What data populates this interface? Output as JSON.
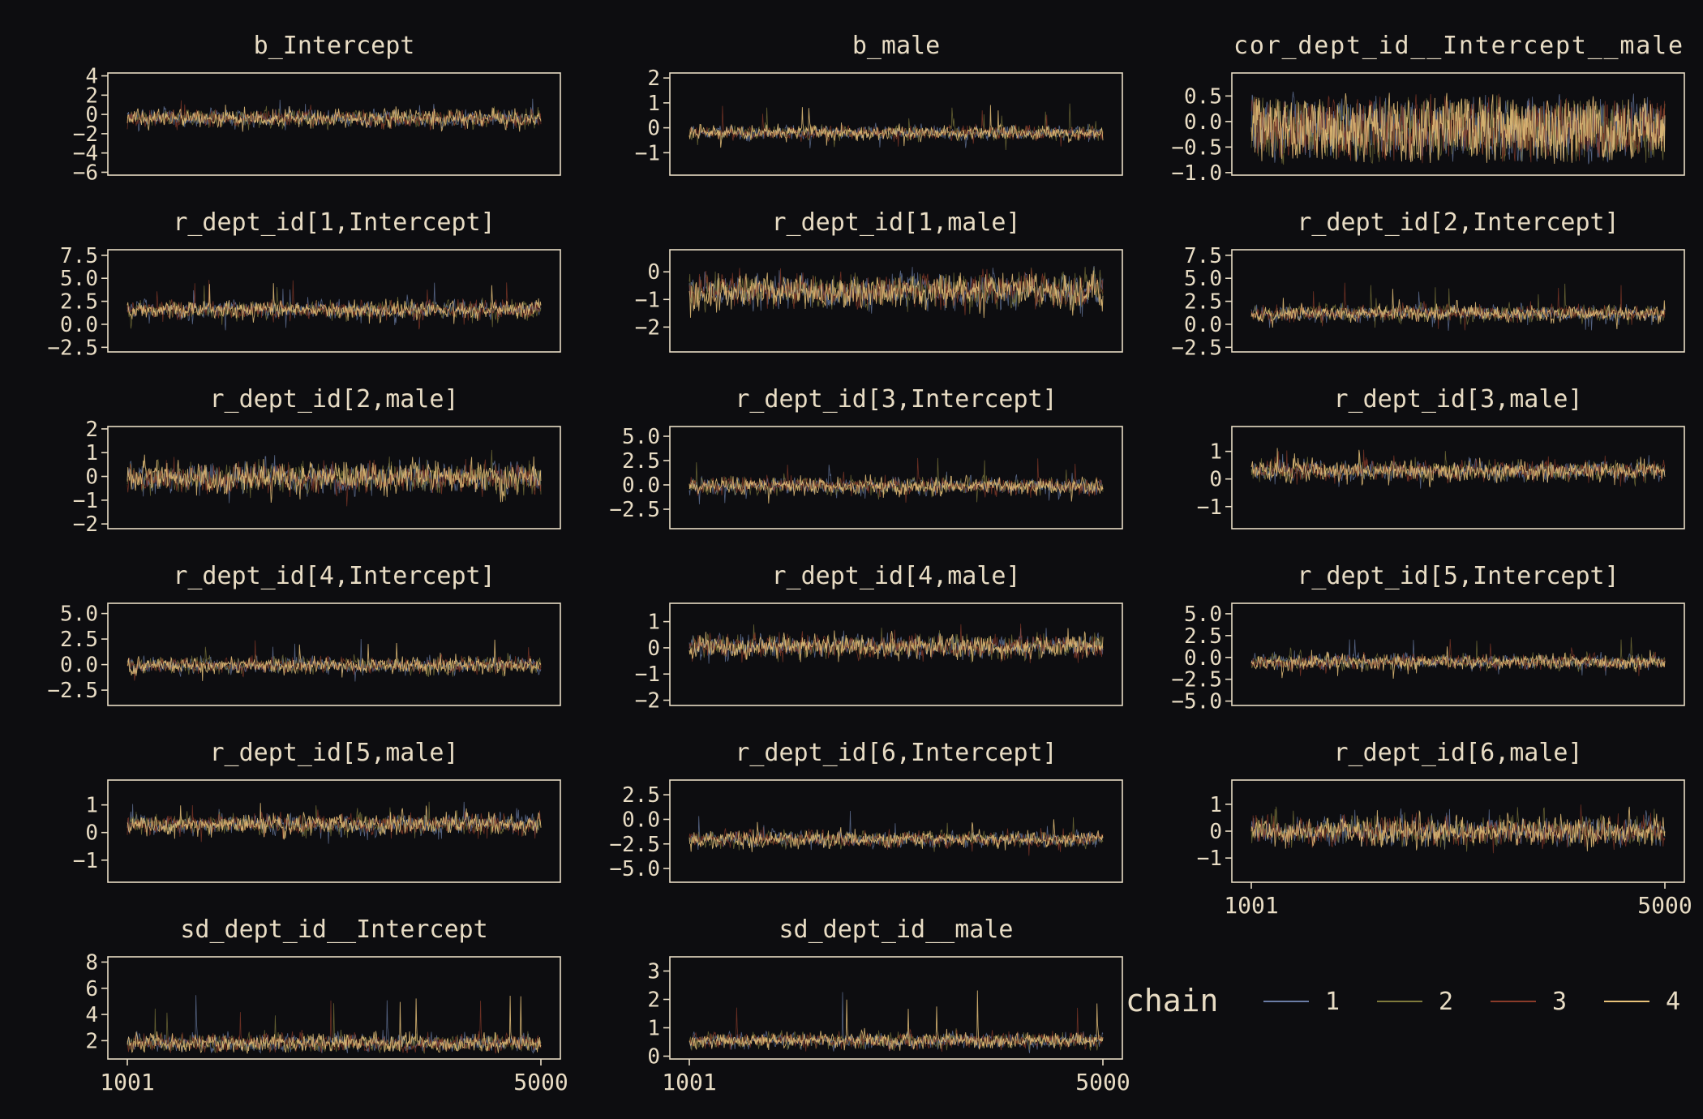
{
  "figure": {
    "background": "#0d0d10",
    "axis_color": "#e8dcc4",
    "text_color": "#e8dcc4"
  },
  "legend": {
    "title": "chain",
    "items": [
      {
        "label": "1",
        "color": "#6b7da6"
      },
      {
        "label": "2",
        "color": "#7f7a3c"
      },
      {
        "label": "3",
        "color": "#8a3b2a"
      },
      {
        "label": "4",
        "color": "#e8c27a"
      }
    ]
  },
  "chart_data": [
    {
      "type": "line",
      "title": "b_Intercept",
      "xlim": [
        1001,
        5000
      ],
      "ylim": [
        -6.3,
        4.3
      ],
      "yticks": [
        "4",
        "2",
        "0",
        "−2",
        "−4",
        "−6"
      ],
      "ytick_values": [
        4,
        2,
        0,
        -2,
        -4,
        -6
      ],
      "center": -0.4,
      "spread": 1.1,
      "spike": 3.5,
      "show_xticks": false
    },
    {
      "type": "line",
      "title": "b_male",
      "xlim": [
        1001,
        5000
      ],
      "ylim": [
        -1.9,
        2.2
      ],
      "yticks": [
        "2",
        "1",
        "0",
        "−1"
      ],
      "ytick_values": [
        2,
        1,
        0,
        -1
      ],
      "center": -0.2,
      "spread": 0.35,
      "spike": 1.8,
      "show_xticks": false
    },
    {
      "type": "line",
      "title": "cor_dept_id__Intercept__male",
      "xlim": [
        1001,
        5000
      ],
      "ylim": [
        -1.05,
        0.95
      ],
      "yticks": [
        "0.5",
        "0.0",
        "−0.5",
        "−1.0"
      ],
      "ytick_values": [
        0.5,
        0,
        -0.5,
        -1
      ],
      "center": -0.15,
      "spread": 0.75,
      "spike": 0.15,
      "show_xticks": false,
      "dense": true
    },
    {
      "type": "line",
      "title": "r_dept_id[1,Intercept]",
      "xlim": [
        1001,
        5000
      ],
      "ylim": [
        -3.0,
        8.1
      ],
      "yticks": [
        "7.5",
        "5.0",
        "2.5",
        "0.0",
        "−2.5"
      ],
      "ytick_values": [
        7.5,
        5,
        2.5,
        0,
        -2.5
      ],
      "center": 1.6,
      "spread": 1.2,
      "spike": 5.0,
      "show_xticks": false
    },
    {
      "type": "line",
      "title": "r_dept_id[1,male]",
      "xlim": [
        1001,
        5000
      ],
      "ylim": [
        -2.9,
        0.8
      ],
      "yticks": [
        "0",
        "−1",
        "−2"
      ],
      "ytick_values": [
        0,
        -1,
        -2
      ],
      "center": -0.7,
      "spread": 0.75,
      "spike": 1.3,
      "show_xticks": false
    },
    {
      "type": "line",
      "title": "r_dept_id[2,Intercept]",
      "xlim": [
        1001,
        5000
      ],
      "ylim": [
        -3.0,
        8.1
      ],
      "yticks": [
        "7.5",
        "5.0",
        "2.5",
        "0.0",
        "−2.5"
      ],
      "ytick_values": [
        7.5,
        5,
        2.5,
        0,
        -2.5
      ],
      "center": 1.2,
      "spread": 1.1,
      "spike": 5.0,
      "show_xticks": false
    },
    {
      "type": "line",
      "title": "r_dept_id[2,male]",
      "xlim": [
        1001,
        5000
      ],
      "ylim": [
        -2.2,
        2.1
      ],
      "yticks": [
        "2",
        "1",
        "0",
        "−1",
        "−2"
      ],
      "ytick_values": [
        2,
        1,
        0,
        -1,
        -2
      ],
      "center": -0.05,
      "spread": 0.8,
      "spike": 1.4,
      "show_xticks": false
    },
    {
      "type": "line",
      "title": "r_dept_id[3,Intercept]",
      "xlim": [
        1001,
        5000
      ],
      "ylim": [
        -4.5,
        6.0
      ],
      "yticks": [
        "5.0",
        "2.5",
        "0.0",
        "−2.5"
      ],
      "ytick_values": [
        5,
        2.5,
        0,
        -2.5
      ],
      "center": -0.1,
      "spread": 1.1,
      "spike": 4.5,
      "show_xticks": false
    },
    {
      "type": "line",
      "title": "r_dept_id[3,male]",
      "xlim": [
        1001,
        5000
      ],
      "ylim": [
        -1.8,
        1.9
      ],
      "yticks": [
        "1",
        "0",
        "−1"
      ],
      "ytick_values": [
        1,
        0,
        -1
      ],
      "center": 0.3,
      "spread": 0.45,
      "spike": 1.4,
      "show_xticks": false
    },
    {
      "type": "line",
      "title": "r_dept_id[4,Intercept]",
      "xlim": [
        1001,
        5000
      ],
      "ylim": [
        -4.0,
        6.0
      ],
      "yticks": [
        "5.0",
        "2.5",
        "0.0",
        "−2.5"
      ],
      "ytick_values": [
        5,
        2.5,
        0,
        -2.5
      ],
      "center": -0.1,
      "spread": 1.0,
      "spike": 4.5,
      "show_xticks": false
    },
    {
      "type": "line",
      "title": "r_dept_id[4,male]",
      "xlim": [
        1001,
        5000
      ],
      "ylim": [
        -2.2,
        1.7
      ],
      "yticks": [
        "1",
        "0",
        "−1",
        "−2"
      ],
      "ytick_values": [
        1,
        0,
        -1,
        -2
      ],
      "center": 0.05,
      "spread": 0.55,
      "spike": 1.4,
      "show_xticks": false
    },
    {
      "type": "line",
      "title": "r_dept_id[5,Intercept]",
      "xlim": [
        1001,
        5000
      ],
      "ylim": [
        -5.5,
        6.2
      ],
      "yticks": [
        "5.0",
        "2.5",
        "0.0",
        "−2.5",
        "−5.0"
      ],
      "ytick_values": [
        5,
        2.5,
        0,
        -2.5,
        -5
      ],
      "center": -0.5,
      "spread": 1.1,
      "spike": 4.8,
      "show_xticks": false
    },
    {
      "type": "line",
      "title": "r_dept_id[5,male]",
      "xlim": [
        1001,
        5000
      ],
      "ylim": [
        -1.8,
        1.9
      ],
      "yticks": [
        "1",
        "0",
        "−1"
      ],
      "ytick_values": [
        1,
        0,
        -1
      ],
      "center": 0.3,
      "spread": 0.45,
      "spike": 1.4,
      "show_xticks": false
    },
    {
      "type": "line",
      "title": "r_dept_id[6,Intercept]",
      "xlim": [
        1001,
        5000
      ],
      "ylim": [
        -6.4,
        4.0
      ],
      "yticks": [
        "2.5",
        "0.0",
        "−2.5",
        "−5.0"
      ],
      "ytick_values": [
        2.5,
        0,
        -2.5,
        -5
      ],
      "center": -2.0,
      "spread": 1.0,
      "spike": 4.5,
      "show_xticks": false
    },
    {
      "type": "line",
      "title": "r_dept_id[6,male]",
      "xlim": [
        1001,
        5000
      ],
      "ylim": [
        -1.9,
        1.9
      ],
      "yticks": [
        "1",
        "0",
        "−1"
      ],
      "ytick_values": [
        1,
        0,
        -1
      ],
      "center": 0.0,
      "spread": 0.65,
      "spike": 1.4,
      "show_xticks": true,
      "xticks": [
        "1001",
        "5000"
      ],
      "xtick_values": [
        1001,
        5000
      ]
    },
    {
      "type": "line",
      "title": "sd_dept_id__Intercept",
      "xlim": [
        1001,
        5000
      ],
      "ylim": [
        0.6,
        8.4
      ],
      "yticks": [
        "8",
        "6",
        "4",
        "2"
      ],
      "ytick_values": [
        8,
        6,
        4,
        2
      ],
      "center": 1.8,
      "spread": 0.9,
      "spike": 5.8,
      "show_xticks": true,
      "xticks": [
        "1001",
        "5000"
      ],
      "xtick_values": [
        1001,
        5000
      ],
      "positive": true
    },
    {
      "type": "line",
      "title": "sd_dept_id__male",
      "xlim": [
        1001,
        5000
      ],
      "ylim": [
        -0.1,
        3.5
      ],
      "yticks": [
        "3",
        "2",
        "1",
        "0"
      ],
      "ytick_values": [
        3,
        2,
        1,
        0
      ],
      "center": 0.55,
      "spread": 0.35,
      "spike": 2.8,
      "show_xticks": true,
      "xticks": [
        "1001",
        "5000"
      ],
      "xtick_values": [
        1001,
        5000
      ],
      "positive": true
    }
  ]
}
